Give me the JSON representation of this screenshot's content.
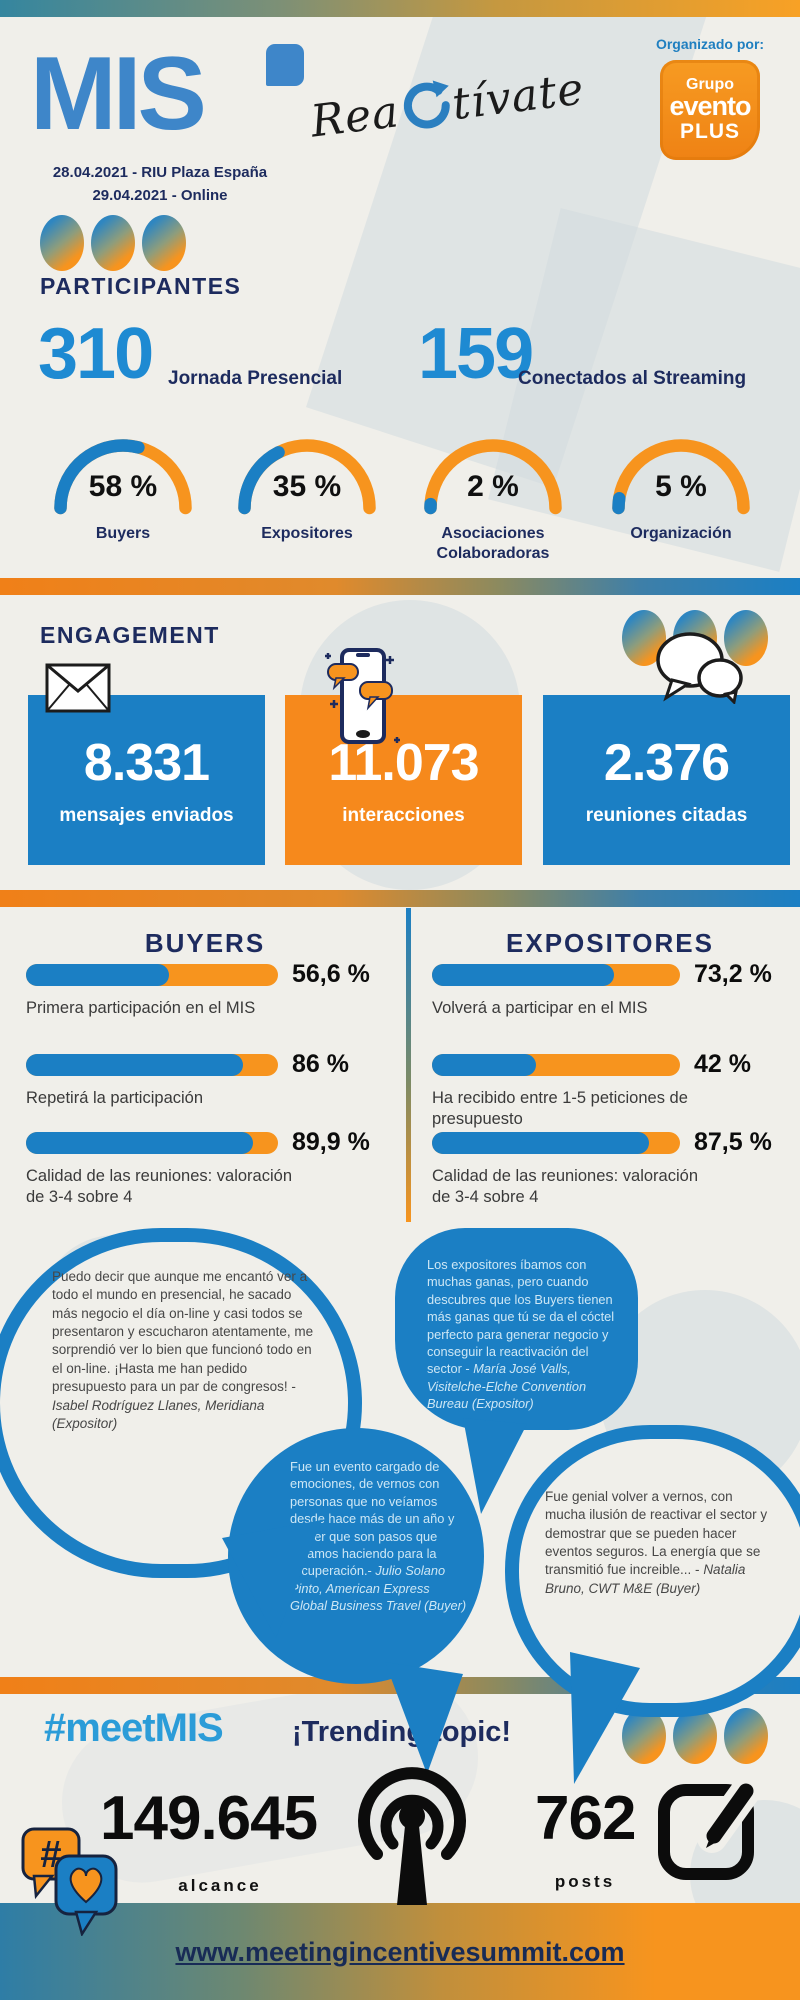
{
  "colors": {
    "blue": "#1b7fc4",
    "orange": "#f7941e",
    "navy": "#1d2b5e",
    "number_blue": "#1e8ad2"
  },
  "header": {
    "logo_text": "MIS",
    "tagline_pre": "Rea",
    "tagline_post": "tívate",
    "organized_by_label": "Organizado por:",
    "organizer": {
      "line1": "Grupo",
      "line2": "evento",
      "line3": "PLUS"
    },
    "dates": [
      "28.04.2021 - RIU Plaza España",
      "29.04.2021 - Online"
    ]
  },
  "participants": {
    "title": "PARTICIPANTES",
    "stats": [
      {
        "value": "310",
        "label": "Jornada Presencial"
      },
      {
        "value": "159",
        "label": "Conectados al Streaming"
      }
    ],
    "gauges": [
      {
        "value": "58 %",
        "pct": 58,
        "label": "Buyers"
      },
      {
        "value": "35 %",
        "pct": 35,
        "label": "Expositores"
      },
      {
        "value": "2 %",
        "pct": 2,
        "label": "Asociaciones Colaboradoras"
      },
      {
        "value": "5 %",
        "pct": 5,
        "label": "Organización"
      }
    ]
  },
  "engagement": {
    "title": "ENGAGEMENT",
    "cards": [
      {
        "value": "8.331",
        "label": "mensajes enviados",
        "icon": "envelope-icon"
      },
      {
        "value": "11.073",
        "label": "interacciones",
        "icon": "phone-chat-icon"
      },
      {
        "value": "2.376",
        "label": "reuniones citadas",
        "icon": "speech-bubbles-icon"
      }
    ]
  },
  "survey": {
    "buyers": {
      "title": "BUYERS",
      "bars": [
        {
          "value": "56,6 %",
          "pct": 56.6,
          "label": "Primera participación en el MIS"
        },
        {
          "value": "86 %",
          "pct": 86,
          "label": "Repetirá la participación"
        },
        {
          "value": "89,9 %",
          "pct": 89.9,
          "label": "Calidad de las reuniones: valoración de 3-4 sobre 4"
        }
      ]
    },
    "expositores": {
      "title": "EXPOSITORES",
      "bars": [
        {
          "value": "73,2 %",
          "pct": 73.2,
          "label": "Volverá a participar en el MIS"
        },
        {
          "value": "42 %",
          "pct": 42,
          "label": "Ha recibido entre 1-5 peticiones de presupuesto"
        },
        {
          "value": "87,5 %",
          "pct": 87.5,
          "label": "Calidad de las reuniones: valoración de 3-4 sobre 4"
        }
      ]
    }
  },
  "quotes": [
    {
      "text": "Puedo decir que aunque me encantó ver a todo el mundo en presencial, he sacado más negocio el día on-line y casi todos se presentaron y escucharon atentamente, me sorprendió ver lo bien que funcionó todo en el on-line. ¡Hasta me han pedido presupuesto para un par de congresos! - ",
      "attribution": "Isabel Rodríguez Llanes, Meridiana (Expositor)"
    },
    {
      "text": "Los expositores íbamos con muchas ganas, pero cuando descubres que los Buyers tienen más ganas que tú se da el cóctel perfecto para generar negocio y conseguir la reactivación del sector - ",
      "attribution": "María José Valls, Visitelche-Elche Convention Bureau (Expositor)"
    },
    {
      "text": "Fue un evento cargado de emociones, de vernos con personas que no veíamos desde hace más de un año y de ver que son pasos que estamos haciendo para la recuperación.- ",
      "attribution": "Julio Solano Pinto, American Express Global Business Travel  (Buyer)"
    },
    {
      "text": "Fue genial volver a vernos, con mucha ilusión de reactivar el sector y demostrar que se pueden hacer eventos seguros. La energía que se transmitió fue increible... - ",
      "attribution": "Natalia Bruno, CWT M&E (Buyer)"
    }
  ],
  "social": {
    "hashtag": "#meetMIS",
    "trending": "¡Trending topic!",
    "stats": [
      {
        "value": "149.645",
        "label": "alcance"
      },
      {
        "value": "762",
        "label": "posts"
      }
    ]
  },
  "footer": {
    "url": "www.meetingincentivesummit.com"
  },
  "chart_data": [
    {
      "type": "bar",
      "style": "semicircular-gauges",
      "title": "PARTICIPANTES",
      "categories": [
        "Buyers",
        "Expositores",
        "Asociaciones Colaboradoras",
        "Organización"
      ],
      "values": [
        58,
        35,
        2,
        5
      ],
      "unit": "%",
      "extra_metrics": {
        "Jornada Presencial": 310,
        "Conectados al Streaming": 159
      }
    },
    {
      "type": "bar",
      "title": "BUYERS",
      "categories": [
        "Primera participación en el MIS",
        "Repetirá la participación",
        "Calidad de las reuniones: valoración de 3-4 sobre 4"
      ],
      "values": [
        56.6,
        86,
        89.9
      ],
      "unit": "%",
      "xlim": [
        0,
        100
      ]
    },
    {
      "type": "bar",
      "title": "EXPOSITORES",
      "categories": [
        "Volverá a participar en el MIS",
        "Ha recibido entre 1-5 peticiones de presupuesto",
        "Calidad de las reuniones: valoración de 3-4 sobre 4"
      ],
      "values": [
        73.2,
        42,
        87.5
      ],
      "unit": "%",
      "xlim": [
        0,
        100
      ]
    },
    {
      "type": "table",
      "title": "ENGAGEMENT",
      "categories": [
        "mensajes enviados",
        "interacciones",
        "reuniones citadas"
      ],
      "values": [
        8331,
        11073,
        2376
      ]
    },
    {
      "type": "table",
      "title": "#meetMIS ¡Trending topic!",
      "categories": [
        "alcance",
        "posts"
      ],
      "values": [
        149645,
        762
      ]
    }
  ]
}
